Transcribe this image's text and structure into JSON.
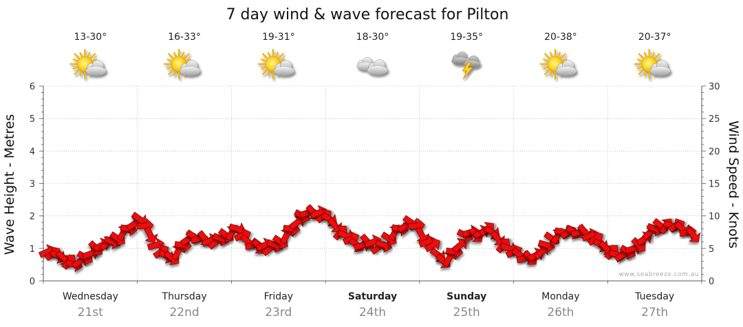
{
  "chart_data": {
    "type": "line",
    "title": "7 day wind & wave forecast for Pilton",
    "ylabel_left": "Wave Height - Metres",
    "ylabel_right": "Wind Speed - Knots",
    "ylim_left": [
      0,
      6
    ],
    "ylim_right": [
      0,
      30
    ],
    "yticks_left": [
      "0",
      "1",
      "2",
      "3",
      "4",
      "5",
      "6"
    ],
    "yticks_right": [
      "0",
      "5",
      "10",
      "15",
      "20",
      "25",
      "30"
    ],
    "credit": "www.seabreeze.com.au",
    "days": [
      {
        "day": "Wednesday",
        "date": "21st",
        "temp": "13-30°",
        "icon": "partly-cloudy-sun-icon",
        "bold": false
      },
      {
        "day": "Thursday",
        "date": "22nd",
        "temp": "16-33°",
        "icon": "partly-cloudy-sun-icon",
        "bold": false
      },
      {
        "day": "Friday",
        "date": "23rd",
        "temp": "19-31°",
        "icon": "partly-cloudy-sun-icon",
        "bold": false
      },
      {
        "day": "Saturday",
        "date": "24th",
        "temp": "18-30°",
        "icon": "cloudy-icon",
        "bold": true
      },
      {
        "day": "Sunday",
        "date": "25th",
        "temp": "19-35°",
        "icon": "thunderstorm-icon",
        "bold": true
      },
      {
        "day": "Monday",
        "date": "26th",
        "temp": "20-38°",
        "icon": "partly-cloudy-sun-icon",
        "bold": false
      },
      {
        "day": "Tuesday",
        "date": "27th",
        "temp": "20-37°",
        "icon": "partly-cloudy-sun-icon",
        "bold": false
      }
    ],
    "series": [
      {
        "wind_speed_knots": [
          4.5,
          4.2,
          3.8,
          3.5,
          3.0,
          2.5,
          3.0,
          3.6,
          4.2,
          5.0,
          5.5,
          5.8,
          6.0,
          6.5,
          7.5,
          8.0,
          8.8,
          9.5,
          8.5,
          7.0,
          5.5,
          4.5,
          3.8,
          3.5,
          4.5,
          5.5,
          6.5,
          6.8,
          6.5,
          6.5,
          6.2,
          6.0,
          6.5,
          7.0,
          7.5,
          8.0,
          7.0,
          6.0,
          5.5,
          5.2,
          5.5,
          5.0,
          5.5,
          6.0,
          7.0,
          8.0,
          9.0,
          10.0,
          10.5,
          10.5,
          10.5,
          10.0,
          9.5,
          8.5,
          7.5,
          7.0,
          6.5,
          5.5,
          5.5,
          6.0,
          6.0,
          5.2,
          5.5,
          6.5,
          7.5,
          8.0,
          8.5,
          9.0,
          8.5,
          7.0,
          6.0,
          5.5,
          4.0,
          3.0,
          3.5,
          4.5,
          5.5,
          7.0,
          7.5,
          7.0,
          7.5,
          8.0,
          7.5,
          6.5,
          5.5,
          5.0,
          4.5,
          4.0,
          3.5,
          3.5,
          4.0,
          4.5,
          5.5,
          6.5,
          7.0,
          7.5,
          7.5,
          7.5,
          7.5,
          7.5,
          7.0,
          6.5,
          5.5,
          5.0,
          4.5,
          4.0,
          4.0,
          4.5,
          5.0,
          5.5,
          6.5,
          7.5,
          8.0,
          8.5,
          8.5,
          8.5,
          8.5,
          8.0,
          7.5,
          7.0
        ],
        "wind_direction": "red arrows"
      }
    ],
    "colors": {
      "arrow": "#ee1111",
      "arrow_stroke": "#660000",
      "grid": "#999999",
      "axis": "#555555"
    }
  }
}
